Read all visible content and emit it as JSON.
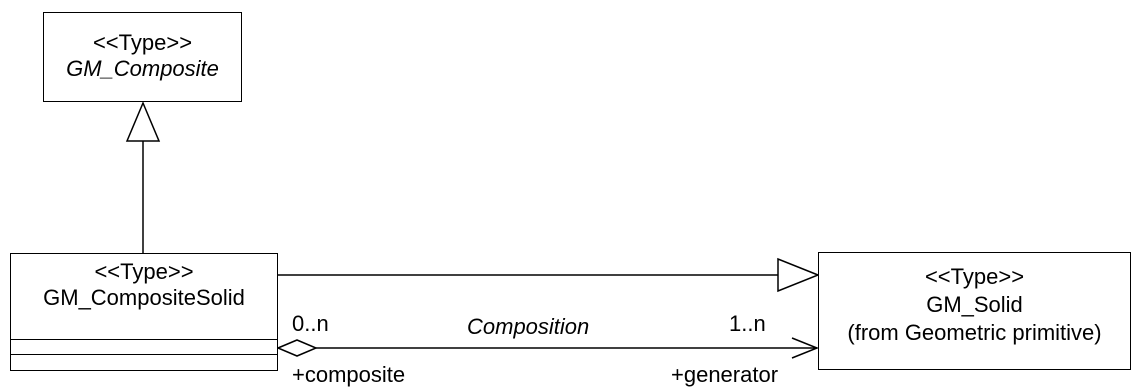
{
  "classes": {
    "composite": {
      "stereotype": "<<Type>>",
      "name": "GM_Composite"
    },
    "composite_solid": {
      "stereotype": "<<Type>>",
      "name": "GM_CompositeSolid"
    },
    "solid": {
      "stereotype": "<<Type>>",
      "name": "GM_Solid",
      "package": "(from Geometric primitive)"
    }
  },
  "association": {
    "name": "Composition",
    "source_multiplicity": "0..n",
    "target_multiplicity": "1..n",
    "source_role": "+composite",
    "target_role": "+generator"
  }
}
